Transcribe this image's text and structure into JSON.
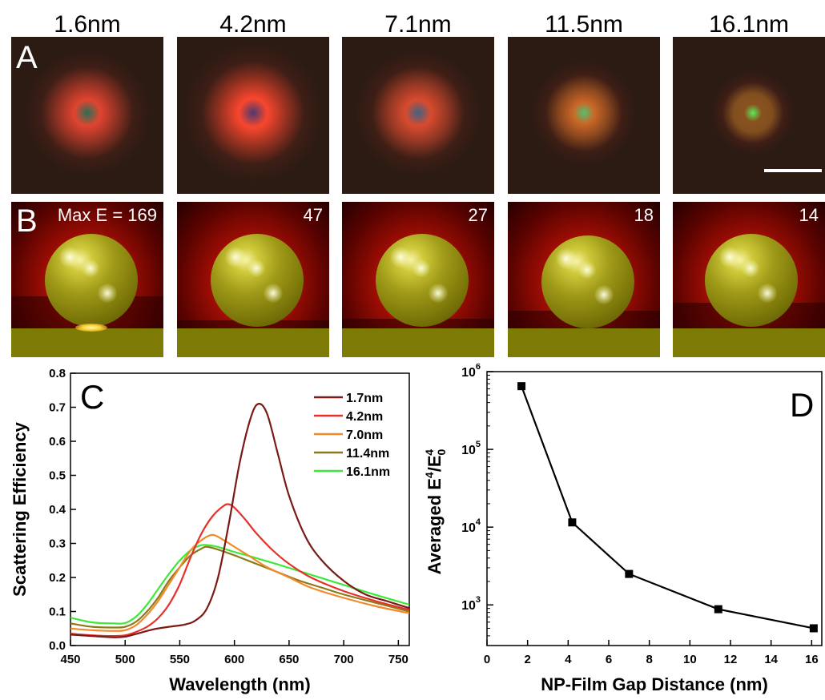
{
  "panel_a": {
    "letter": "A",
    "titles": [
      "1.6nm",
      "4.2nm",
      "7.1nm",
      "11.5nm",
      "16.1nm"
    ]
  },
  "panel_b": {
    "letter": "B",
    "max_labels": [
      "Max E = 169",
      "47",
      "27",
      "18",
      "14"
    ]
  },
  "chart_data": [
    {
      "type": "line",
      "panel_letter": "C",
      "title": "",
      "xlabel": "Wavelength (nm)",
      "ylabel": "Scattering Efficiency",
      "xlim": [
        450,
        760
      ],
      "ylim": [
        0.0,
        0.8
      ],
      "xticks": [
        450,
        500,
        550,
        600,
        650,
        700,
        750
      ],
      "yticks": [
        0.0,
        0.1,
        0.2,
        0.3,
        0.4,
        0.5,
        0.6,
        0.7,
        0.8
      ],
      "legend_position": "top-right",
      "grid": false,
      "series": [
        {
          "name": "1.7nm",
          "color": "#7a1a16",
          "x": [
            450,
            470,
            490,
            500,
            510,
            525,
            540,
            555,
            565,
            575,
            585,
            595,
            605,
            615,
            622,
            630,
            640,
            650,
            665,
            680,
            700,
            720,
            740,
            760
          ],
          "y": [
            0.032,
            0.028,
            0.024,
            0.026,
            0.034,
            0.047,
            0.055,
            0.062,
            0.075,
            0.11,
            0.2,
            0.36,
            0.54,
            0.67,
            0.71,
            0.68,
            0.56,
            0.44,
            0.32,
            0.25,
            0.19,
            0.15,
            0.13,
            0.11
          ]
        },
        {
          "name": "4.2nm",
          "color": "#e8302a",
          "x": [
            450,
            470,
            490,
            500,
            510,
            520,
            530,
            540,
            550,
            560,
            570,
            580,
            590,
            595,
            600,
            610,
            620,
            635,
            650,
            670,
            700,
            730,
            760
          ],
          "y": [
            0.035,
            0.03,
            0.028,
            0.03,
            0.04,
            0.055,
            0.08,
            0.12,
            0.18,
            0.26,
            0.33,
            0.38,
            0.41,
            0.415,
            0.405,
            0.37,
            0.33,
            0.28,
            0.24,
            0.2,
            0.16,
            0.13,
            0.105
          ]
        },
        {
          "name": "7.0nm",
          "color": "#f08a2a",
          "x": [
            450,
            470,
            490,
            500,
            510,
            520,
            530,
            540,
            550,
            560,
            570,
            580,
            590,
            600,
            615,
            630,
            650,
            670,
            700,
            730,
            760
          ],
          "y": [
            0.05,
            0.045,
            0.043,
            0.045,
            0.06,
            0.09,
            0.13,
            0.18,
            0.23,
            0.28,
            0.31,
            0.325,
            0.31,
            0.29,
            0.26,
            0.23,
            0.2,
            0.17,
            0.14,
            0.115,
            0.095
          ]
        },
        {
          "name": "11.4nm",
          "color": "#8c7a1a",
          "x": [
            450,
            470,
            490,
            500,
            510,
            520,
            530,
            540,
            550,
            560,
            570,
            575,
            585,
            600,
            620,
            640,
            660,
            680,
            700,
            730,
            760
          ],
          "y": [
            0.065,
            0.055,
            0.053,
            0.055,
            0.07,
            0.1,
            0.14,
            0.19,
            0.23,
            0.265,
            0.285,
            0.29,
            0.282,
            0.265,
            0.24,
            0.215,
            0.19,
            0.17,
            0.15,
            0.125,
            0.1
          ]
        },
        {
          "name": "16.1nm",
          "color": "#3ee83a",
          "x": [
            450,
            470,
            490,
            500,
            510,
            520,
            530,
            540,
            550,
            560,
            570,
            580,
            590,
            600,
            620,
            640,
            660,
            680,
            700,
            730,
            760
          ],
          "y": [
            0.082,
            0.068,
            0.065,
            0.066,
            0.085,
            0.12,
            0.165,
            0.21,
            0.25,
            0.28,
            0.295,
            0.293,
            0.285,
            0.275,
            0.257,
            0.238,
            0.218,
            0.198,
            0.178,
            0.148,
            0.12
          ]
        }
      ]
    },
    {
      "type": "line",
      "panel_letter": "D",
      "title": "",
      "xlabel": "NP-Film Gap Distance (nm)",
      "ylabel_parts": [
        "Averaged E",
        "4",
        "/E",
        "0",
        "4"
      ],
      "xlim": [
        0,
        16.5
      ],
      "ylog": true,
      "ylim": [
        300,
        1000000
      ],
      "xticks": [
        0,
        2,
        4,
        6,
        8,
        10,
        12,
        14,
        16
      ],
      "yticks": [
        1000,
        10000,
        100000,
        1000000
      ],
      "ytick_labels": [
        {
          "base": "10",
          "exp": "3"
        },
        {
          "base": "10",
          "exp": "4"
        },
        {
          "base": "10",
          "exp": "5"
        },
        {
          "base": "10",
          "exp": "6"
        }
      ],
      "grid": false,
      "series": [
        {
          "marker": "square",
          "color": "#000000",
          "x": [
            1.7,
            4.2,
            7.0,
            11.4,
            16.1
          ],
          "y": [
            650000,
            11500,
            2500,
            880,
            500
          ]
        }
      ]
    }
  ]
}
